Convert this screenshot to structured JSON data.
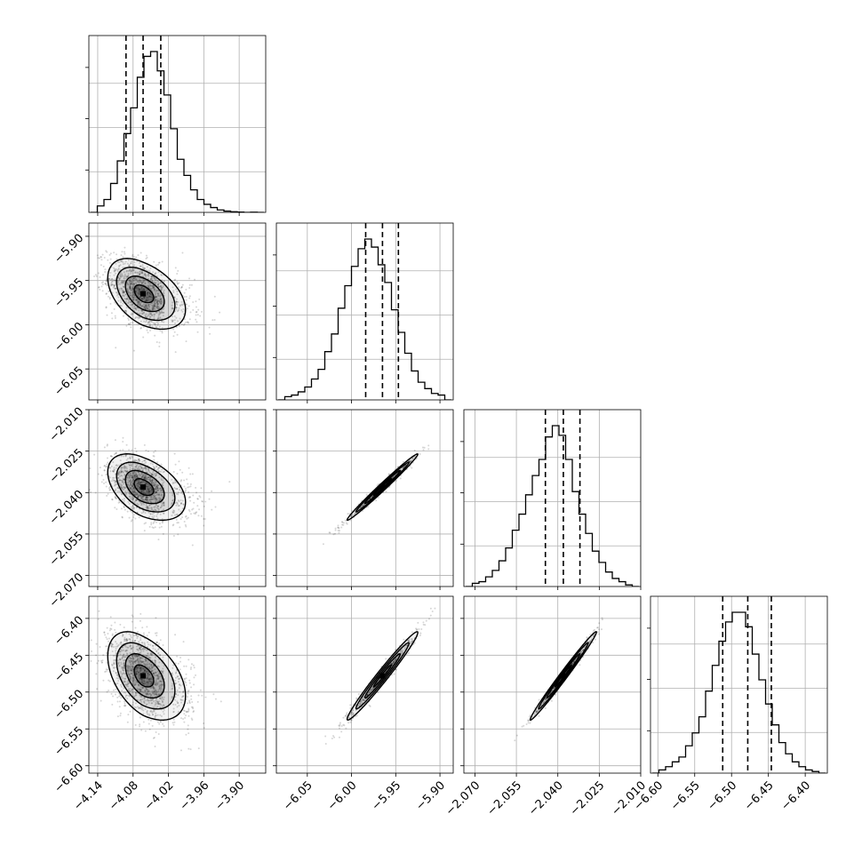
{
  "chart_data": {
    "type": "corner",
    "grid": true,
    "parameters": [
      {
        "index": 0,
        "range": [
          -4.155,
          -3.855
        ],
        "ticks": [
          -4.14,
          -4.08,
          -4.02,
          -3.96,
          -3.9
        ],
        "tick_labels": [
          "−4.14",
          "−4.08",
          "−4.02",
          "−3.96",
          "−3.90"
        ],
        "mean": -4.063,
        "sigma": 0.03,
        "quantiles": [
          -4.092,
          -4.063,
          -4.033
        ],
        "histogram": [
          0.0,
          0.04,
          0.08,
          0.18,
          0.32,
          0.49,
          0.65,
          0.84,
          0.97,
          1.0,
          0.88,
          0.73,
          0.52,
          0.33,
          0.23,
          0.14,
          0.08,
          0.05,
          0.03,
          0.015,
          0.008,
          0.004,
          0.002,
          0.0,
          0.001,
          0.0
        ]
      },
      {
        "index": 1,
        "range": [
          -6.085,
          -5.885
        ],
        "ticks": [
          -6.05,
          -6.0,
          -5.95,
          -5.9
        ],
        "tick_labels": [
          "−6.05",
          "−6.00",
          "−5.95",
          "−5.90"
        ],
        "mean": -5.965,
        "sigma": 0.02,
        "quantiles": [
          -5.984,
          -5.965,
          -5.947
        ],
        "histogram": [
          0.0,
          0.02,
          0.03,
          0.05,
          0.08,
          0.13,
          0.19,
          0.3,
          0.41,
          0.57,
          0.71,
          0.83,
          0.94,
          1.0,
          0.95,
          0.84,
          0.73,
          0.56,
          0.42,
          0.29,
          0.18,
          0.11,
          0.07,
          0.04,
          0.03,
          0.0
        ]
      },
      {
        "index": 2,
        "range": [
          -2.074,
          -2.01
        ],
        "ticks": [
          -2.07,
          -2.055,
          -2.04,
          -2.025,
          -2.01
        ],
        "tick_labels": [
          "−2.070",
          "−2.055",
          "−2.040",
          "−2.025",
          "−2.010"
        ],
        "mean": -2.038,
        "sigma": 0.006,
        "quantiles": [
          -2.0445,
          -2.038,
          -2.032
        ],
        "histogram": [
          0.0,
          0.02,
          0.03,
          0.06,
          0.1,
          0.16,
          0.24,
          0.35,
          0.45,
          0.57,
          0.69,
          0.79,
          0.93,
          1.0,
          0.94,
          0.79,
          0.59,
          0.45,
          0.33,
          0.22,
          0.15,
          0.09,
          0.05,
          0.03,
          0.01,
          0.0
        ]
      },
      {
        "index": 3,
        "range": [
          -6.61,
          -6.37
        ],
        "ticks": [
          -6.6,
          -6.55,
          -6.5,
          -6.45,
          -6.4
        ],
        "tick_labels": [
          "−6.60",
          "−6.55",
          "−6.50",
          "−6.45",
          "−6.40"
        ],
        "mean": -6.478,
        "sigma": 0.03,
        "quantiles": [
          -6.512,
          -6.478,
          -6.446
        ],
        "histogram": [
          0.0,
          0.02,
          0.04,
          0.07,
          0.1,
          0.17,
          0.25,
          0.35,
          0.51,
          0.67,
          0.82,
          0.94,
          1.0,
          1.0,
          0.91,
          0.74,
          0.58,
          0.43,
          0.3,
          0.19,
          0.12,
          0.07,
          0.04,
          0.02,
          0.01,
          0.0
        ]
      }
    ],
    "correlations": {
      "1-0": -0.45,
      "2-0": -0.45,
      "2-1": 0.99,
      "3-0": -0.45,
      "3-1": 0.98,
      "3-2": 0.99
    },
    "contour_levels": [
      0.5,
      1.0,
      1.5,
      2.0
    ],
    "colors": {
      "line": "#000000",
      "grid": "#b0b0b0",
      "point": "#000000"
    }
  }
}
